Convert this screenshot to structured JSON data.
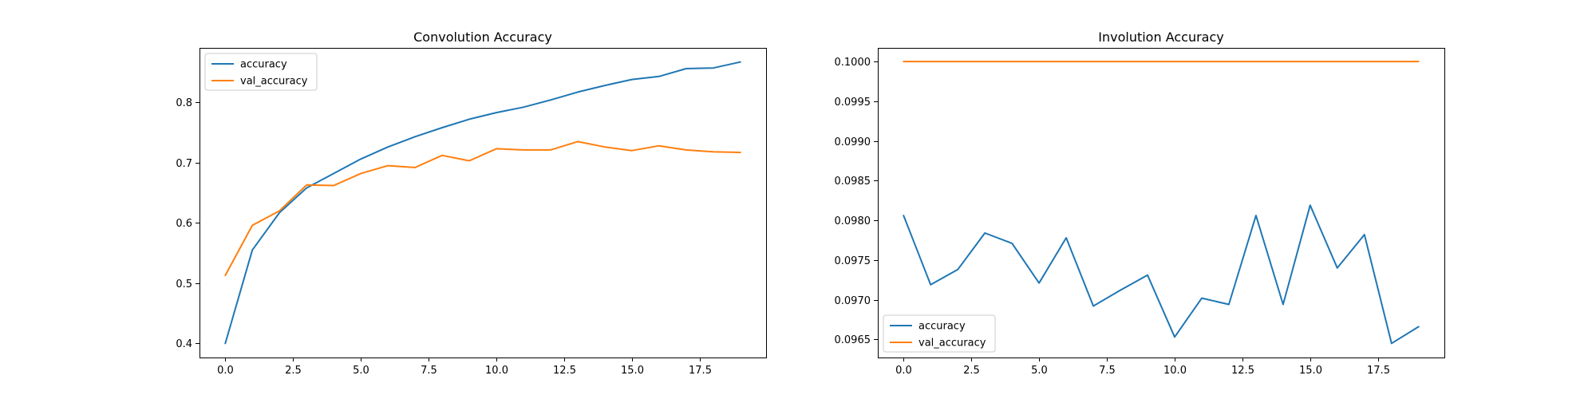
{
  "chart_data": [
    {
      "type": "line",
      "title": "Convolution Accuracy",
      "xlabel": "",
      "ylabel": "",
      "xlim": [
        -0.95,
        19.95
      ],
      "ylim": [
        0.3767,
        0.8904
      ],
      "xticks": [
        0.0,
        2.5,
        5.0,
        7.5,
        10.0,
        12.5,
        15.0,
        17.5
      ],
      "xtick_labels": [
        "0.0",
        "2.5",
        "5.0",
        "7.5",
        "10.0",
        "12.5",
        "15.0",
        "17.5"
      ],
      "yticks": [
        0.4,
        0.5,
        0.6,
        0.7,
        0.8
      ],
      "ytick_labels": [
        "0.4",
        "0.5",
        "0.6",
        "0.7",
        "0.8"
      ],
      "grid": false,
      "legend_position": "upper-left",
      "x": [
        0,
        1,
        2,
        3,
        4,
        5,
        6,
        7,
        8,
        9,
        10,
        11,
        12,
        13,
        14,
        15,
        16,
        17,
        18,
        19
      ],
      "series": [
        {
          "name": "accuracy",
          "color": "#1f77b4",
          "values": [
            0.4,
            0.555,
            0.617,
            0.658,
            0.682,
            0.706,
            0.726,
            0.743,
            0.758,
            0.772,
            0.783,
            0.792,
            0.804,
            0.817,
            0.828,
            0.838,
            0.843,
            0.856,
            0.857,
            0.867
          ]
        },
        {
          "name": "val_accuracy",
          "color": "#ff7f0e",
          "values": [
            0.513,
            0.596,
            0.62,
            0.663,
            0.662,
            0.682,
            0.695,
            0.692,
            0.712,
            0.703,
            0.723,
            0.721,
            0.721,
            0.735,
            0.726,
            0.72,
            0.728,
            0.721,
            0.718,
            0.717
          ]
        }
      ]
    },
    {
      "type": "line",
      "title": "Involution Accuracy",
      "xlabel": "",
      "ylabel": "",
      "xlim": [
        -0.95,
        19.95
      ],
      "ylim": [
        0.096272,
        0.100172
      ],
      "xticks": [
        0.0,
        2.5,
        5.0,
        7.5,
        10.0,
        12.5,
        15.0,
        17.5
      ],
      "xtick_labels": [
        "0.0",
        "2.5",
        "5.0",
        "7.5",
        "10.0",
        "12.5",
        "15.0",
        "17.5"
      ],
      "yticks": [
        0.0965,
        0.097,
        0.0975,
        0.098,
        0.0985,
        0.099,
        0.0995,
        0.1
      ],
      "ytick_labels": [
        "0.0965",
        "0.0970",
        "0.0975",
        "0.0980",
        "0.0985",
        "0.0990",
        "0.0995",
        "0.1000"
      ],
      "grid": false,
      "legend_position": "lower-left",
      "x": [
        0,
        1,
        2,
        3,
        4,
        5,
        6,
        7,
        8,
        9,
        10,
        11,
        12,
        13,
        14,
        15,
        16,
        17,
        18,
        19
      ],
      "series": [
        {
          "name": "accuracy",
          "color": "#1f77b4",
          "values": [
            0.09806,
            0.09719,
            0.09738,
            0.09784,
            0.09771,
            0.09721,
            0.09778,
            0.09692,
            0.09712,
            0.09731,
            0.09653,
            0.09702,
            0.09694,
            0.09806,
            0.09694,
            0.09819,
            0.0974,
            0.09782,
            0.09645,
            0.09666
          ]
        },
        {
          "name": "val_accuracy",
          "color": "#ff7f0e",
          "values": [
            0.1,
            0.1,
            0.1,
            0.1,
            0.1,
            0.1,
            0.1,
            0.1,
            0.1,
            0.1,
            0.1,
            0.1,
            0.1,
            0.1,
            0.1,
            0.1,
            0.1,
            0.1,
            0.1,
            0.1
          ]
        }
      ]
    }
  ]
}
